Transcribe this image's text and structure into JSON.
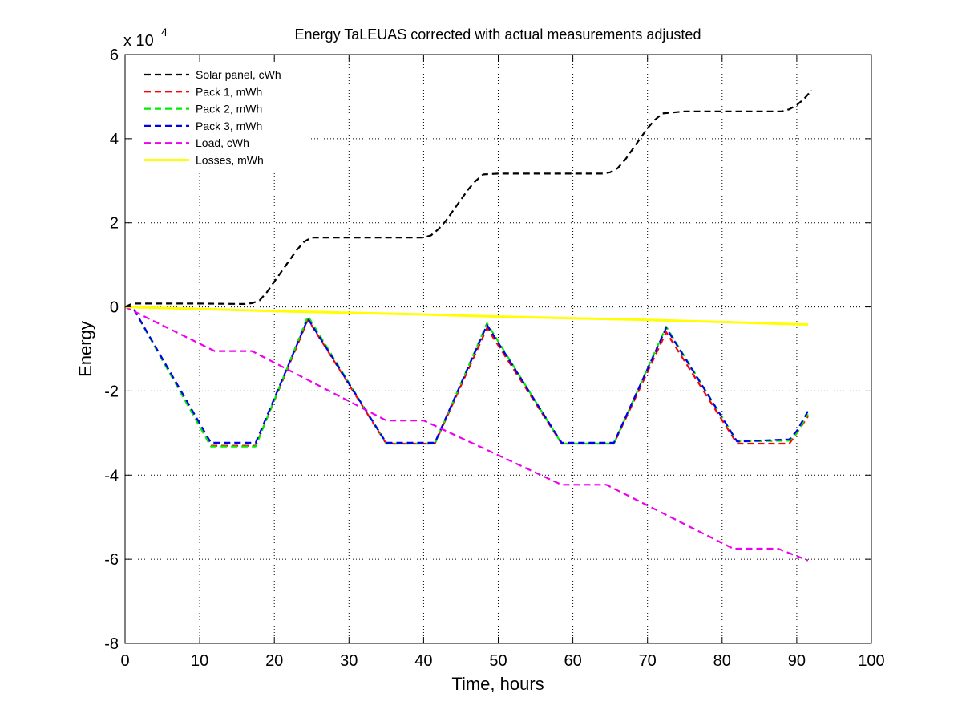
{
  "chart_data": {
    "type": "line",
    "title": "Energy TaLEUAS corrected with actual measurements adjusted",
    "xlabel": "Time, hours",
    "ylabel": "Energy",
    "exponent_base": "x 10",
    "exponent_power": "4",
    "xlim": [
      0,
      100
    ],
    "ylim": [
      -80000,
      60000
    ],
    "xticks": [
      0,
      10,
      20,
      30,
      40,
      50,
      60,
      70,
      80,
      90,
      100
    ],
    "yticks": [
      -80000,
      -60000,
      -40000,
      -20000,
      0,
      20000,
      40000,
      60000
    ],
    "ytick_labels": [
      "-8",
      "-6",
      "-4",
      "-2",
      "0",
      "2",
      "4",
      "6"
    ],
    "xtick_labels": [
      "0",
      "10",
      "20",
      "30",
      "40",
      "50",
      "60",
      "70",
      "80",
      "90",
      "100"
    ],
    "grid": true,
    "legend_position": "top-left",
    "series": [
      {
        "name": "Solar panel, cWh",
        "color": "#000000",
        "dash": "dashed",
        "x": [
          0,
          1,
          5,
          10,
          16,
          17,
          18,
          19,
          20,
          21,
          22,
          23,
          24,
          25,
          27,
          30,
          35,
          40,
          41,
          42,
          43,
          44,
          45,
          46,
          47,
          48,
          50,
          55,
          60,
          64,
          65,
          66,
          67,
          68,
          69,
          70,
          71,
          72,
          75,
          80,
          85,
          88,
          89,
          90,
          91,
          92
        ],
        "y": [
          0,
          800,
          800,
          800,
          700,
          900,
          1500,
          3500,
          6000,
          8500,
          11000,
          13500,
          15500,
          16500,
          16500,
          16500,
          16500,
          16500,
          17000,
          18500,
          20500,
          23000,
          25500,
          28000,
          30000,
          31500,
          31700,
          31700,
          31700,
          31700,
          32000,
          33000,
          35000,
          37500,
          40000,
          42500,
          44500,
          46000,
          46500,
          46500,
          46500,
          46500,
          47000,
          48000,
          49500,
          51500
        ]
      },
      {
        "name": "Pack 1, mWh",
        "color": "#ff0000",
        "dash": "dashed",
        "x": [
          0,
          1,
          11.5,
          17.5,
          24.5,
          35,
          41.5,
          48.5,
          58.5,
          65.5,
          72.5,
          82,
          89,
          90,
          91.5
        ],
        "y": [
          0,
          0,
          -33000,
          -33000,
          -3000,
          -32500,
          -32500,
          -5000,
          -32500,
          -32500,
          -6000,
          -32500,
          -32500,
          -30000,
          -26000
        ]
      },
      {
        "name": "Pack 2, mWh",
        "color": "#00ee00",
        "dash": "dashed",
        "x": [
          0,
          1,
          11.5,
          17.5,
          24.5,
          35,
          41.5,
          48.5,
          58.5,
          65.5,
          72.5,
          82,
          89,
          90,
          91.5
        ],
        "y": [
          0,
          0,
          -33200,
          -33200,
          -2200,
          -32500,
          -32500,
          -3900,
          -32500,
          -32500,
          -4700,
          -32000,
          -31800,
          -30000,
          -25500
        ]
      },
      {
        "name": "Pack 3, mWh",
        "color": "#0000ee",
        "dash": "dashed",
        "x": [
          0,
          1,
          11.5,
          17.5,
          24.5,
          35,
          41.5,
          48.5,
          58.5,
          65.5,
          72.5,
          82,
          89,
          90,
          91.5
        ],
        "y": [
          0,
          0,
          -32300,
          -32300,
          -2800,
          -32300,
          -32300,
          -4300,
          -32300,
          -32300,
          -5000,
          -32000,
          -31500,
          -29500,
          -24800
        ]
      },
      {
        "name": "Load, cWh",
        "color": "#ee00ee",
        "dash": "dashed",
        "x": [
          0,
          12,
          17,
          35,
          40,
          58.5,
          64.5,
          81.5,
          87.5,
          91.5
        ],
        "y": [
          0,
          -10500,
          -10500,
          -27000,
          -27000,
          -42300,
          -42300,
          -57500,
          -57500,
          -60300
        ]
      },
      {
        "name": "Losses, mWh",
        "color": "#ffff00",
        "dash": "solid",
        "x": [
          0,
          10,
          20,
          30,
          40,
          50,
          60,
          70,
          80,
          91.5
        ],
        "y": [
          0,
          -500,
          -1000,
          -1400,
          -1800,
          -2300,
          -2700,
          -3100,
          -3600,
          -4200
        ]
      }
    ]
  }
}
